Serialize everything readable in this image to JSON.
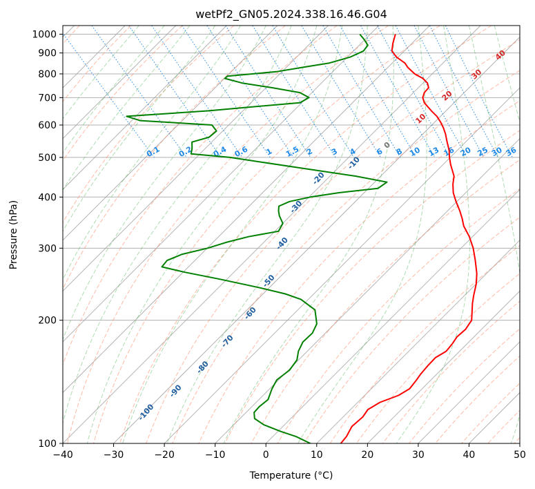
{
  "chart_data": {
    "type": "line",
    "title": "wetPf2_GN05.2024.338.16.46.G04",
    "xlabel": "Temperature (°C)",
    "ylabel": "Pressure (hPa)",
    "xlim": [
      -40,
      50
    ],
    "ylim": [
      1050,
      100
    ],
    "y_scale": "log",
    "grid": true,
    "x_ticks": [
      "−40",
      "−30",
      "−20",
      "−10",
      "0",
      "10",
      "20",
      "30",
      "40",
      "50"
    ],
    "y_ticks": [
      "100",
      "200",
      "300",
      "400",
      "500",
      "600",
      "700",
      "800",
      "900",
      "1000"
    ],
    "series": [
      {
        "color": "#ff0000",
        "points": [
          [
            23.8,
            1000
          ],
          [
            21.5,
            950
          ],
          [
            19.8,
            910
          ],
          [
            19.5,
            880
          ],
          [
            20.0,
            850
          ],
          [
            19.7,
            830
          ],
          [
            19.8,
            800
          ],
          [
            20.5,
            780
          ],
          [
            20.5,
            760
          ],
          [
            19.8,
            740
          ],
          [
            18.0,
            720
          ],
          [
            16.7,
            700
          ],
          [
            16.0,
            680
          ],
          [
            15.8,
            650
          ],
          [
            15.8,
            630
          ],
          [
            15.4,
            610
          ],
          [
            14.8,
            590
          ],
          [
            14.0,
            570
          ],
          [
            13.0,
            550
          ],
          [
            11.5,
            520
          ],
          [
            10.2,
            500
          ],
          [
            9.0,
            480
          ],
          [
            7.4,
            450
          ],
          [
            5.6,
            430
          ],
          [
            4.0,
            410
          ],
          [
            2.8,
            390
          ],
          [
            1.7,
            370
          ],
          [
            0.7,
            355
          ],
          [
            -0.5,
            340
          ],
          [
            -1.5,
            320
          ],
          [
            -3.0,
            300
          ],
          [
            -5.0,
            280
          ],
          [
            -7.3,
            260
          ],
          [
            -9.5,
            245
          ],
          [
            -12.2,
            230
          ],
          [
            -14.0,
            220
          ],
          [
            -17.5,
            200
          ],
          [
            -20.5,
            190
          ],
          [
            -23.7,
            182
          ],
          [
            -26.0,
            175
          ],
          [
            -28.6,
            168
          ],
          [
            -32.0,
            162
          ],
          [
            -35.0,
            155
          ],
          [
            -38.0,
            148
          ],
          [
            -40.5,
            142
          ],
          [
            -43.2,
            136
          ],
          [
            -46.7,
            131
          ],
          [
            -51.7,
            126
          ],
          [
            -55.5,
            121
          ],
          [
            -58.0,
            116
          ],
          [
            -62.0,
            110
          ],
          [
            -65.0,
            104
          ],
          [
            -67.5,
            100
          ]
        ]
      },
      {
        "color": "#008000",
        "points": [
          [
            16.8,
            1000
          ],
          [
            16.6,
            970
          ],
          [
            16.2,
            940
          ],
          [
            14.2,
            910
          ],
          [
            10.5,
            880
          ],
          [
            5.0,
            850
          ],
          [
            -1.0,
            830
          ],
          [
            -7.0,
            810
          ],
          [
            -17.5,
            790
          ],
          [
            -18.5,
            780
          ],
          [
            -16.0,
            760
          ],
          [
            -11.0,
            740
          ],
          [
            -6.5,
            720
          ],
          [
            -5.7,
            700
          ],
          [
            -8.5,
            680
          ],
          [
            -18.3,
            665
          ],
          [
            -28.0,
            650
          ],
          [
            -45.3,
            630
          ],
          [
            -43.5,
            615
          ],
          [
            -30.2,
            600
          ],
          [
            -30.5,
            580
          ],
          [
            -33.2,
            560
          ],
          [
            -37.5,
            545
          ],
          [
            -38.8,
            525
          ],
          [
            -40.0,
            510
          ],
          [
            -33.0,
            500
          ],
          [
            -20.8,
            470
          ],
          [
            -12.0,
            450
          ],
          [
            -7.0,
            435
          ],
          [
            -10.0,
            420
          ],
          [
            -18.5,
            410
          ],
          [
            -25.0,
            400
          ],
          [
            -30.0,
            390
          ],
          [
            -33.0,
            380
          ],
          [
            -34.0,
            370
          ],
          [
            -34.8,
            360
          ],
          [
            -35.6,
            345
          ],
          [
            -38.0,
            330
          ],
          [
            -45.0,
            320
          ],
          [
            -50.5,
            310
          ],
          [
            -55.3,
            300
          ],
          [
            -61.5,
            290
          ],
          [
            -65.7,
            280
          ],
          [
            -68.0,
            270
          ],
          [
            -64.5,
            262
          ],
          [
            -59.0,
            252
          ],
          [
            -52.8,
            240
          ],
          [
            -49.0,
            232
          ],
          [
            -47.0,
            225
          ],
          [
            -46.3,
            212
          ],
          [
            -48.7,
            196
          ],
          [
            -51.4,
            186
          ],
          [
            -55.0,
            177
          ],
          [
            -57.7,
            168
          ],
          [
            -59.7,
            160
          ],
          [
            -63.2,
            151
          ],
          [
            -67.6,
            143
          ],
          [
            -70.3,
            136
          ],
          [
            -73.2,
            128
          ],
          [
            -76.3,
            123
          ],
          [
            -78.5,
            119
          ],
          [
            -79.6,
            115
          ],
          [
            -79.0,
            111
          ],
          [
            -77.0,
            107
          ],
          [
            -75.0,
            104
          ],
          [
            -73.5,
            100
          ]
        ]
      }
    ],
    "dry_adiabat_labels": [
      "-100",
      "-90",
      "-80",
      "-70",
      "-60",
      "-50",
      "-40",
      "-30",
      "-20",
      "-10"
    ],
    "mixing_ratio_labels": [
      "0.1",
      "0.2",
      "0.4",
      "0.6",
      "1",
      "1.5",
      "2",
      "3",
      "4",
      "6",
      "8",
      "10",
      "13",
      "16",
      "20",
      "25",
      "30",
      "36"
    ],
    "moist_adiabat_labels": [
      "0",
      "10",
      "20",
      "30",
      "40"
    ],
    "colors": {
      "temperature": "#ff0000",
      "dewpoint": "#008000",
      "isotherm": "#9e9e9e",
      "dry_adiabat": "#ff8c69",
      "moist_adiabat": "#4caf50",
      "mixing_ratio": "#1e88e5",
      "wet_bulb_zero": "#d2b48c",
      "grid": "#b0b0b0"
    }
  }
}
